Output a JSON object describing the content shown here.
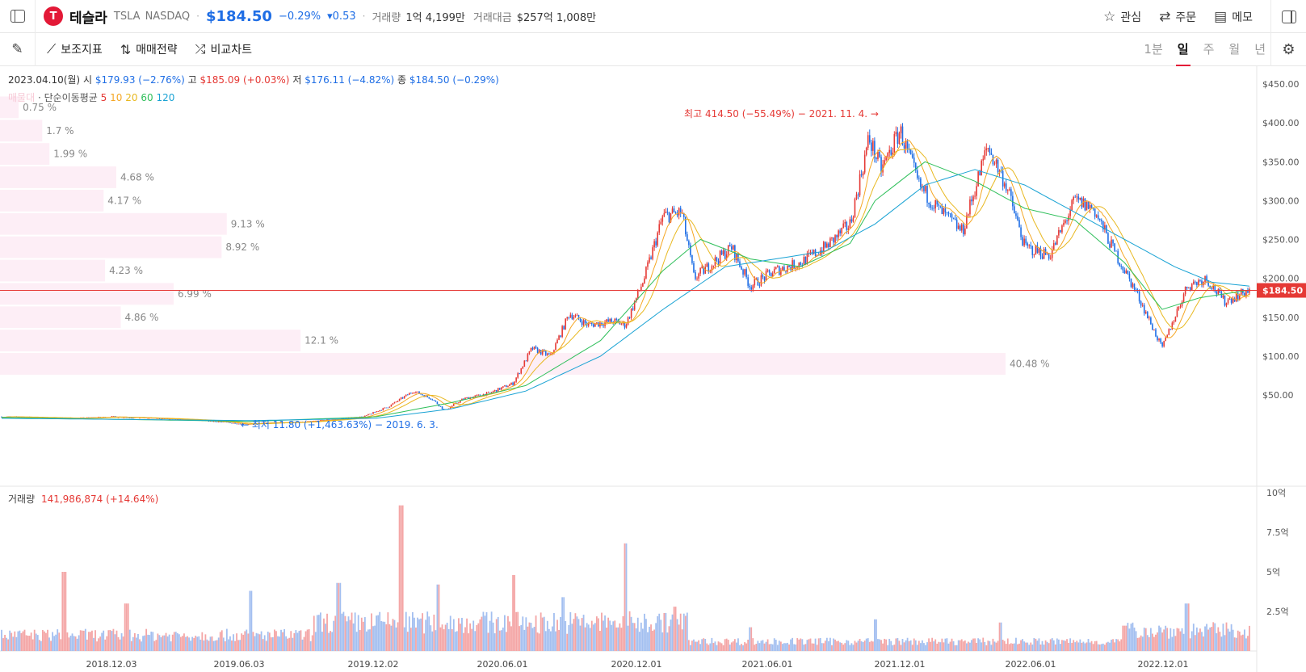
{
  "header": {
    "logo_letter": "T",
    "name": "테슬라",
    "ticker": "TSLA",
    "exchange": "NASDAQ",
    "price": "$184.50",
    "change_pct": "−0.29%",
    "change_amt": "▾0.53",
    "volume_label": "거래량",
    "volume_value": "1억 4,199만",
    "turnover_label": "거래대금",
    "turnover_value": "$257억 1,008만",
    "actions": [
      {
        "icon": "star-icon",
        "glyph": "☆",
        "label": "관심"
      },
      {
        "icon": "swap-icon",
        "glyph": "⇄",
        "label": "주문"
      },
      {
        "icon": "clipboard-icon",
        "glyph": "▤",
        "label": "메모"
      }
    ]
  },
  "toolbar": {
    "tools": [
      {
        "icon": "indicator-icon",
        "glyph": "⟋",
        "label": "보조지표"
      },
      {
        "icon": "strategy-icon",
        "glyph": "⇅",
        "label": "매매전략"
      },
      {
        "icon": "compare-icon",
        "glyph": "⤮",
        "label": "비교차트"
      }
    ],
    "periods": [
      {
        "label": "1분",
        "active": false
      },
      {
        "label": "일",
        "active": true
      },
      {
        "label": "주",
        "active": false
      },
      {
        "label": "월",
        "active": false
      },
      {
        "label": "년",
        "active": false
      }
    ]
  },
  "ohlc": {
    "date": "2023.04.10(월)",
    "open_label": "시",
    "open": "$179.93 (−2.76%)",
    "high_label": "고",
    "high": "$185.09 (+0.03%)",
    "low_label": "저",
    "low": "$176.11 (−4.82%)",
    "close_label": "종",
    "close": "$184.50 (−0.29%)"
  },
  "ma_legend": {
    "faint": "매물대",
    "label": "· 단순이동평균",
    "periods": [
      {
        "label": "5",
        "color": "#e53935"
      },
      {
        "label": "10",
        "color": "#f5a623"
      },
      {
        "label": "20",
        "color": "#e8b820"
      },
      {
        "label": "60",
        "color": "#2ebf5a"
      },
      {
        "label": "120",
        "color": "#1aa3d4"
      }
    ]
  },
  "volume_legend": {
    "label": "거래량",
    "value": "141,986,874 (+14.64%)"
  },
  "colors": {
    "up": "#e53935",
    "down": "#1f6ee5",
    "profile": "#fdeef6",
    "ma5": "#e53935",
    "ma10": "#f5a623",
    "ma20": "#e8b820",
    "ma60": "#2ebf5a",
    "ma120": "#1aa3d4"
  },
  "chart_data": [
    {
      "type": "line",
      "title": "",
      "y_axis": {
        "min": 0,
        "max": 450,
        "ticks": [
          "$450.00",
          "$400.00",
          "$350.00",
          "$300.00",
          "$250.00",
          "$200.00",
          "$150.00",
          "$100.00",
          "$50.00"
        ],
        "tick_values": [
          450,
          400,
          350,
          300,
          250,
          200,
          150,
          100,
          50
        ]
      },
      "x_axis": {
        "ticks": [
          "2018.12.03",
          "2019.06.03",
          "2019.12.02",
          "2020.06.01",
          "2020.12.01",
          "2021.06.01",
          "2021.12.01",
          "2022.06.01",
          "2022.12.01"
        ]
      },
      "current_price": 184.5,
      "current_price_label": "$184.50",
      "high_annotation": "최고 414.50 (−55.49%) − 2021. 11. 4. →",
      "high_value": 414.5,
      "low_annotation": "← 최저 11.80 (+1,463.63%) − 2019. 6. 3.",
      "low_value": 11.8,
      "price_series": [
        {
          "t": 0,
          "v": 22
        },
        {
          "t": 0.03,
          "v": 21
        },
        {
          "t": 0.06,
          "v": 20
        },
        {
          "t": 0.09,
          "v": 22
        },
        {
          "t": 0.12,
          "v": 20
        },
        {
          "t": 0.15,
          "v": 18
        },
        {
          "t": 0.18,
          "v": 15
        },
        {
          "t": 0.195,
          "v": 12
        },
        {
          "t": 0.21,
          "v": 14
        },
        {
          "t": 0.24,
          "v": 15
        },
        {
          "t": 0.27,
          "v": 19
        },
        {
          "t": 0.29,
          "v": 22
        },
        {
          "t": 0.31,
          "v": 35
        },
        {
          "t": 0.33,
          "v": 55
        },
        {
          "t": 0.345,
          "v": 45
        },
        {
          "t": 0.355,
          "v": 30
        },
        {
          "t": 0.37,
          "v": 45
        },
        {
          "t": 0.39,
          "v": 52
        },
        {
          "t": 0.41,
          "v": 65
        },
        {
          "t": 0.425,
          "v": 110
        },
        {
          "t": 0.44,
          "v": 100
        },
        {
          "t": 0.455,
          "v": 155
        },
        {
          "t": 0.47,
          "v": 140
        },
        {
          "t": 0.49,
          "v": 145
        },
        {
          "t": 0.5,
          "v": 140
        },
        {
          "t": 0.515,
          "v": 200
        },
        {
          "t": 0.53,
          "v": 280
        },
        {
          "t": 0.545,
          "v": 285
        },
        {
          "t": 0.555,
          "v": 200
        },
        {
          "t": 0.57,
          "v": 220
        },
        {
          "t": 0.585,
          "v": 240
        },
        {
          "t": 0.6,
          "v": 190
        },
        {
          "t": 0.62,
          "v": 210
        },
        {
          "t": 0.64,
          "v": 220
        },
        {
          "t": 0.66,
          "v": 240
        },
        {
          "t": 0.68,
          "v": 270
        },
        {
          "t": 0.695,
          "v": 380
        },
        {
          "t": 0.705,
          "v": 340
        },
        {
          "t": 0.72,
          "v": 390
        },
        {
          "t": 0.735,
          "v": 320
        },
        {
          "t": 0.75,
          "v": 290
        },
        {
          "t": 0.77,
          "v": 260
        },
        {
          "t": 0.79,
          "v": 370
        },
        {
          "t": 0.805,
          "v": 320
        },
        {
          "t": 0.82,
          "v": 240
        },
        {
          "t": 0.84,
          "v": 230
        },
        {
          "t": 0.86,
          "v": 300
        },
        {
          "t": 0.875,
          "v": 290
        },
        {
          "t": 0.89,
          "v": 240
        },
        {
          "t": 0.91,
          "v": 180
        },
        {
          "t": 0.93,
          "v": 110
        },
        {
          "t": 0.95,
          "v": 190
        },
        {
          "t": 0.965,
          "v": 200
        },
        {
          "t": 0.98,
          "v": 170
        },
        {
          "t": 1.0,
          "v": 185
        }
      ],
      "ma120_series": [
        {
          "t": 0,
          "v": 20
        },
        {
          "t": 0.2,
          "v": 17
        },
        {
          "t": 0.3,
          "v": 20
        },
        {
          "t": 0.36,
          "v": 32
        },
        {
          "t": 0.42,
          "v": 55
        },
        {
          "t": 0.48,
          "v": 100
        },
        {
          "t": 0.53,
          "v": 160
        },
        {
          "t": 0.58,
          "v": 215
        },
        {
          "t": 0.62,
          "v": 225
        },
        {
          "t": 0.66,
          "v": 235
        },
        {
          "t": 0.7,
          "v": 270
        },
        {
          "t": 0.74,
          "v": 320
        },
        {
          "t": 0.78,
          "v": 340
        },
        {
          "t": 0.82,
          "v": 320
        },
        {
          "t": 0.86,
          "v": 285
        },
        {
          "t": 0.9,
          "v": 250
        },
        {
          "t": 0.94,
          "v": 215
        },
        {
          "t": 0.97,
          "v": 195
        },
        {
          "t": 1.0,
          "v": 190
        }
      ],
      "ma60_series": [
        {
          "t": 0,
          "v": 21
        },
        {
          "t": 0.2,
          "v": 16
        },
        {
          "t": 0.3,
          "v": 22
        },
        {
          "t": 0.36,
          "v": 40
        },
        {
          "t": 0.42,
          "v": 62
        },
        {
          "t": 0.48,
          "v": 120
        },
        {
          "t": 0.53,
          "v": 210
        },
        {
          "t": 0.56,
          "v": 250
        },
        {
          "t": 0.6,
          "v": 225
        },
        {
          "t": 0.64,
          "v": 215
        },
        {
          "t": 0.68,
          "v": 245
        },
        {
          "t": 0.7,
          "v": 300
        },
        {
          "t": 0.74,
          "v": 350
        },
        {
          "t": 0.78,
          "v": 325
        },
        {
          "t": 0.82,
          "v": 290
        },
        {
          "t": 0.86,
          "v": 275
        },
        {
          "t": 0.9,
          "v": 220
        },
        {
          "t": 0.93,
          "v": 160
        },
        {
          "t": 0.96,
          "v": 175
        },
        {
          "t": 1.0,
          "v": 185
        }
      ],
      "profile_bars": [
        {
          "pct": 0.75,
          "label": "0.75 %",
          "lo": 405,
          "hi": 435
        },
        {
          "pct": 1.7,
          "label": "1.7 %",
          "lo": 375,
          "hi": 405
        },
        {
          "pct": 1.99,
          "label": "1.99 %",
          "lo": 345,
          "hi": 375
        },
        {
          "pct": 4.68,
          "label": "4.68 %",
          "lo": 315,
          "hi": 345
        },
        {
          "pct": 4.17,
          "label": "4.17 %",
          "lo": 285,
          "hi": 315
        },
        {
          "pct": 9.13,
          "label": "9.13 %",
          "lo": 255,
          "hi": 285
        },
        {
          "pct": 8.92,
          "label": "8.92 %",
          "lo": 225,
          "hi": 255
        },
        {
          "pct": 4.23,
          "label": "4.23 %",
          "lo": 195,
          "hi": 225
        },
        {
          "pct": 6.99,
          "label": "6.99 %",
          "lo": 165,
          "hi": 195
        },
        {
          "pct": 4.86,
          "label": "4.86 %",
          "lo": 135,
          "hi": 165
        },
        {
          "pct": 12.1,
          "label": "12.1 %",
          "lo": 105,
          "hi": 135
        },
        {
          "pct": 40.48,
          "label": "40.48 %",
          "lo": 75,
          "hi": 105
        }
      ]
    },
    {
      "type": "bar",
      "title": "",
      "y_axis": {
        "min": 0,
        "max": 1000000000,
        "ticks": [
          "10억",
          "7.5억",
          "5억",
          "2.5억"
        ],
        "tick_values": [
          1000000000,
          750000000,
          500000000,
          250000000
        ]
      },
      "volume_peaks": [
        {
          "t": 0.05,
          "v": 500000000
        },
        {
          "t": 0.1,
          "v": 300000000
        },
        {
          "t": 0.2,
          "v": 380000000
        },
        {
          "t": 0.27,
          "v": 430000000
        },
        {
          "t": 0.32,
          "v": 920000000
        },
        {
          "t": 0.35,
          "v": 420000000
        },
        {
          "t": 0.41,
          "v": 480000000
        },
        {
          "t": 0.45,
          "v": 340000000
        },
        {
          "t": 0.5,
          "v": 680000000
        },
        {
          "t": 0.54,
          "v": 280000000
        },
        {
          "t": 0.6,
          "v": 150000000
        },
        {
          "t": 0.7,
          "v": 200000000
        },
        {
          "t": 0.8,
          "v": 180000000
        },
        {
          "t": 0.9,
          "v": 160000000
        },
        {
          "t": 0.95,
          "v": 300000000
        }
      ]
    }
  ]
}
